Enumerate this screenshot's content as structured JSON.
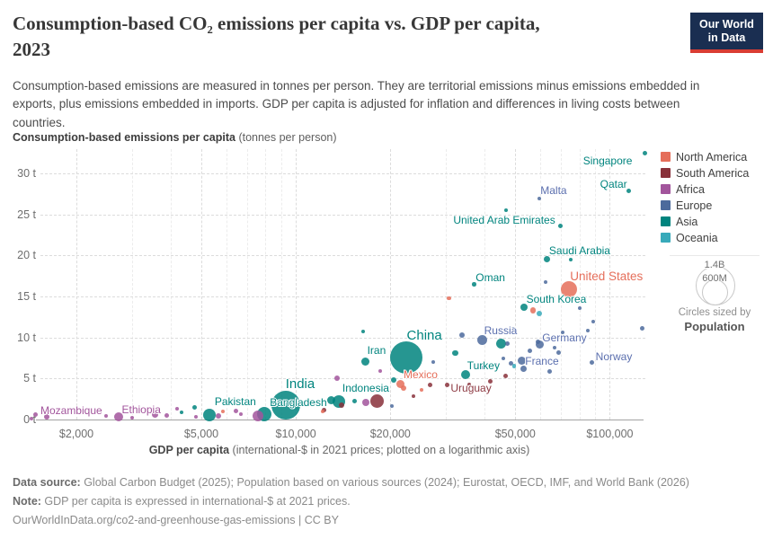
{
  "header": {
    "title_line1": "Consumption-based CO₂ emissions per capita vs. GDP per capita,",
    "title_line2": "2023",
    "subtitle": "Consumption-based emissions are measured in tonnes per person. They are territorial emissions minus emissions embedded in exports, plus emissions embedded in imports. GDP per capita is adjusted for inflation and differences in living costs between countries.",
    "logo": {
      "line1": "Our World",
      "line2": "in Data"
    }
  },
  "axes": {
    "y_title_bold": "Consumption-based emissions per capita",
    "y_title_rest": " (tonnes per person)",
    "x_title_bold": "GDP per capita",
    "x_title_rest": " (international-$ in 2021 prices; plotted on a logarithmic axis)"
  },
  "legend": {
    "items": [
      {
        "label": "North America",
        "color": "#e56e5a"
      },
      {
        "label": "South America",
        "color": "#883039"
      },
      {
        "label": "Africa",
        "color": "#a2559c"
      },
      {
        "label": "Europe",
        "color": "#4c6a9c"
      },
      {
        "label": "Asia",
        "color": "#00847e"
      },
      {
        "label": "Oceania",
        "color": "#38aaba"
      }
    ]
  },
  "size_legend": {
    "big": "1.4B",
    "small": "600M",
    "caption": "Circles sized by",
    "caption_bold": "Population"
  },
  "footer": {
    "source_label": "Data source:",
    "source_text": " Global Carbon Budget (2025); Population based on various sources (2024); Eurostat, OECD, IMF, and World Bank (2026)",
    "note_label": "Note:",
    "note_text": " GDP per capita is expressed in international-$ at 2021 prices.",
    "url": "OurWorldInData.org/co2-and-greenhouse-gas-emissions",
    "license": " | CC BY"
  },
  "chart_data": {
    "type": "scatter",
    "title": "Consumption-based CO₂ emissions per capita vs. GDP per capita, 2023",
    "xlabel": "GDP per capita (international-$ in 2021 prices; plotted on a logarithmic axis)",
    "ylabel": "Consumption-based emissions per capita (tonnes per person)",
    "x_scale": "log",
    "grid": true,
    "xlim": [
      1300,
      135000
    ],
    "ylim": [
      0,
      33
    ],
    "x_ticks": [
      {
        "label": "$2,000",
        "value": 2000
      },
      {
        "label": "$5,000",
        "value": 5000
      },
      {
        "label": "$10,000",
        "value": 10000
      },
      {
        "label": "$20,000",
        "value": 20000
      },
      {
        "label": "$50,000",
        "value": 50000
      },
      {
        "label": "$100,000",
        "value": 100000
      }
    ],
    "x_minor_ticks": [
      3000,
      4000,
      6000,
      7000,
      8000,
      9000,
      30000,
      40000,
      60000,
      70000,
      80000,
      90000
    ],
    "y_ticks": [
      {
        "label": "0 t",
        "value": 0
      },
      {
        "label": "5 t",
        "value": 5
      },
      {
        "label": "10 t",
        "value": 10
      },
      {
        "label": "15 t",
        "value": 15
      },
      {
        "label": "20 t",
        "value": 20
      },
      {
        "label": "25 t",
        "value": 25
      },
      {
        "label": "30 t",
        "value": 30
      }
    ],
    "series": [
      {
        "name": "Asia",
        "color": "#00847e",
        "points": [
          {
            "label": "Pakistan",
            "gdp": 5300,
            "co2": 0.55,
            "r": 7,
            "label_dx": 29,
            "label_dy": -15
          },
          {
            "label": "Bangladesh",
            "gdp": 7930,
            "co2": 0.65,
            "r": 8,
            "label_dx": 38,
            "label_dy": -13
          },
          {
            "label": "India",
            "gdp": 9290,
            "co2": 1.75,
            "r": 16,
            "label_dx": 16,
            "label_dy": -23,
            "label_size": 15
          },
          {
            "label": "Indonesia",
            "gdp": 13700,
            "co2": 2.2,
            "r": 7,
            "label_dx": 30,
            "label_dy": -15
          },
          {
            "label": "Iran",
            "gdp": 16700,
            "co2": 7.1,
            "r": 4.5,
            "label_dx": 12,
            "label_dy": -12
          },
          {
            "label": "China",
            "gdp": 22500,
            "co2": 7.55,
            "r": 18,
            "label_dx": 20,
            "label_dy": -24,
            "label_size": 15
          },
          {
            "label": "Turkey",
            "gdp": 34700,
            "co2": 5.5,
            "r": 5,
            "label_dx": 20,
            "label_dy": -10
          },
          {
            "label": "South Korea",
            "gdp": 53300,
            "co2": 13.7,
            "r": 4,
            "label_dx": 36,
            "label_dy": -9
          },
          {
            "label": "Saudi Arabia",
            "gdp": 63250,
            "co2": 19.6,
            "r": 3.5,
            "label_dx": 36,
            "label_dy": -9
          },
          {
            "label": "Oman",
            "gdp": 37000,
            "co2": 16.5,
            "r": 2.3,
            "label_dx": 18,
            "label_dy": -7
          },
          {
            "label": "United Arab Emirates",
            "gdp": 69400,
            "co2": 23.6,
            "r": 2.5,
            "label_dx": -62,
            "label_dy": -7
          },
          {
            "label": "Qatar",
            "gdp": 115000,
            "co2": 27.9,
            "r": 2.5,
            "label_dx": -17,
            "label_dy": -7
          },
          {
            "label": "Singapore",
            "gdp": 129000,
            "co2": 32.5,
            "r": 2.5,
            "label_dx": -41,
            "label_dy": 9
          },
          {
            "gdp": 4330,
            "co2": 0.9,
            "r": 2
          },
          {
            "gdp": 4770,
            "co2": 1.5,
            "r": 2.5
          },
          {
            "gdp": 12970,
            "co2": 2.4,
            "r": 4.5
          },
          {
            "gdp": 15420,
            "co2": 2.2,
            "r": 2.5
          },
          {
            "gdp": 20550,
            "co2": 4.8,
            "r": 3
          },
          {
            "gdp": 16400,
            "co2": 10.7,
            "r": 2
          },
          {
            "gdp": 32200,
            "co2": 8.1,
            "r": 3.3
          },
          {
            "gdp": 45200,
            "co2": 9.3,
            "r": 5.5
          },
          {
            "gdp": 46600,
            "co2": 25.5,
            "r": 2
          },
          {
            "gdp": 75300,
            "co2": 19.5,
            "r": 2
          }
        ]
      },
      {
        "name": "Africa",
        "color": "#a2559c",
        "points": [
          {
            "label": "Mozambique",
            "gdp": 1480,
            "co2": 0.55,
            "r": 2.5,
            "label_dx": 40,
            "label_dy": -5
          },
          {
            "label": "Ethiopia",
            "gdp": 2730,
            "co2": 0.35,
            "r": 5,
            "label_dx": 25,
            "label_dy": -8
          },
          {
            "gdp": 1440,
            "co2": 0.1,
            "r": 2
          },
          {
            "gdp": 1610,
            "co2": 0.35,
            "r": 3
          },
          {
            "gdp": 2480,
            "co2": 0.45,
            "r": 2
          },
          {
            "gdp": 3000,
            "co2": 0.25,
            "r": 2
          },
          {
            "gdp": 3560,
            "co2": 0.55,
            "r": 3.5
          },
          {
            "gdp": 3870,
            "co2": 0.45,
            "r": 2.5
          },
          {
            "gdp": 4190,
            "co2": 1.3,
            "r": 2
          },
          {
            "gdp": 4800,
            "co2": 0.35,
            "r": 2
          },
          {
            "gdp": 5670,
            "co2": 0.45,
            "r": 3
          },
          {
            "gdp": 6430,
            "co2": 1.0,
            "r": 2.5
          },
          {
            "gdp": 6690,
            "co2": 0.65,
            "r": 2
          },
          {
            "gdp": 7580,
            "co2": 0.45,
            "r": 6
          },
          {
            "gdp": 13560,
            "co2": 5.0,
            "r": 3
          },
          {
            "gdp": 16700,
            "co2": 2.1,
            "r": 4
          },
          {
            "gdp": 18540,
            "co2": 5.9,
            "r": 2
          }
        ]
      },
      {
        "name": "North America",
        "color": "#e56e5a",
        "points": [
          {
            "label": "Mexico",
            "gdp": 21600,
            "co2": 4.3,
            "r": 4.5,
            "label_dx": 22,
            "label_dy": -11
          },
          {
            "label": "United States",
            "gdp": 74000,
            "co2": 15.9,
            "r": 9,
            "label_dx": 42,
            "label_dy": -14,
            "label_size": 13.5
          },
          {
            "gdp": 5860,
            "co2": 1.0,
            "r": 2
          },
          {
            "gdp": 12160,
            "co2": 1.0,
            "r": 2
          },
          {
            "gdp": 21990,
            "co2": 3.8,
            "r": 3
          },
          {
            "gdp": 25100,
            "co2": 3.6,
            "r": 2
          },
          {
            "gdp": 30750,
            "co2": 14.8,
            "r": 2.3
          },
          {
            "gdp": 56900,
            "co2": 13.3,
            "r": 3.3
          }
        ]
      },
      {
        "name": "South America",
        "color": "#883039",
        "label_color": "#8d3a43",
        "points": [
          {
            "label": "Uruguay",
            "gdp": 30250,
            "co2": 4.2,
            "r": 2.5,
            "label_dx": 27,
            "label_dy": 3
          },
          {
            "gdp": 12300,
            "co2": 1.1,
            "r": 2.5
          },
          {
            "gdp": 14000,
            "co2": 1.8,
            "r": 3
          },
          {
            "gdp": 18180,
            "co2": 2.2,
            "r": 7.5
          },
          {
            "gdp": 23670,
            "co2": 2.8,
            "r": 2
          },
          {
            "gdp": 26800,
            "co2": 4.2,
            "r": 2.7
          },
          {
            "gdp": 35700,
            "co2": 4.3,
            "r": 2
          },
          {
            "gdp": 41760,
            "co2": 4.7,
            "r": 2.5
          },
          {
            "gdp": 46570,
            "co2": 5.3,
            "r": 2.5
          }
        ]
      },
      {
        "name": "Europe",
        "color": "#4c6a9c",
        "label_color": "#5b6fae",
        "points": [
          {
            "label": "Russia",
            "gdp": 39350,
            "co2": 9.75,
            "r": 5.5,
            "label_dx": 20,
            "label_dy": -10
          },
          {
            "label": "Germany",
            "gdp": 60000,
            "co2": 9.1,
            "r": 4.5,
            "label_dx": 27,
            "label_dy": -8
          },
          {
            "label": "France",
            "gdp": 52600,
            "co2": 7.2,
            "r": 4.5,
            "label_dx": 22,
            "label_dy": 1
          },
          {
            "label": "Norway",
            "gdp": 87400,
            "co2": 7.0,
            "r": 2.5,
            "label_dx": 25,
            "label_dy": -6
          },
          {
            "label": "Malta",
            "gdp": 59600,
            "co2": 27.0,
            "r": 2,
            "label_dx": 16,
            "label_dy": -9
          },
          {
            "gdp": 20280,
            "co2": 1.6,
            "r": 2
          },
          {
            "gdp": 27330,
            "co2": 7.0,
            "r": 2
          },
          {
            "gdp": 33890,
            "co2": 10.3,
            "r": 3
          },
          {
            "gdp": 39350,
            "co2": 6.4,
            "r": 2
          },
          {
            "gdp": 43140,
            "co2": 6.7,
            "r": 2
          },
          {
            "gdp": 45800,
            "co2": 7.5,
            "r": 2
          },
          {
            "gdp": 47110,
            "co2": 9.3,
            "r": 2.5
          },
          {
            "gdp": 48360,
            "co2": 6.9,
            "r": 2.5
          },
          {
            "gdp": 49320,
            "co2": 11.1,
            "r": 2
          },
          {
            "gdp": 53280,
            "co2": 6.2,
            "r": 3.5
          },
          {
            "gdp": 55790,
            "co2": 8.4,
            "r": 2.5
          },
          {
            "gdp": 58880,
            "co2": 9.5,
            "r": 2.5
          },
          {
            "gdp": 62420,
            "co2": 16.8,
            "r": 2
          },
          {
            "gdp": 64480,
            "co2": 5.9,
            "r": 2.5
          },
          {
            "gdp": 66610,
            "co2": 8.8,
            "r": 2
          },
          {
            "gdp": 68750,
            "co2": 8.2,
            "r": 2.5
          },
          {
            "gdp": 71000,
            "co2": 10.6,
            "r": 2
          },
          {
            "gdp": 79970,
            "co2": 13.6,
            "r": 2
          },
          {
            "gdp": 84900,
            "co2": 10.8,
            "r": 2
          },
          {
            "gdp": 88350,
            "co2": 11.9,
            "r": 2
          },
          {
            "gdp": 126800,
            "co2": 11.1,
            "r": 2.5
          }
        ]
      },
      {
        "name": "Oceania",
        "color": "#38aaba",
        "points": [
          {
            "gdp": 59670,
            "co2": 12.9,
            "r": 3
          },
          {
            "gdp": 49640,
            "co2": 6.5,
            "r": 2.3
          }
        ]
      }
    ]
  }
}
